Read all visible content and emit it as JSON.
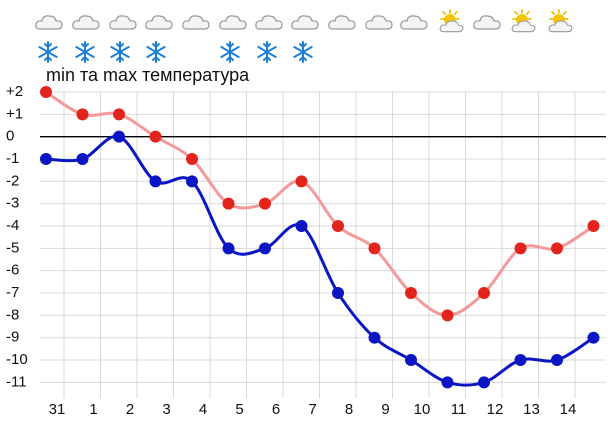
{
  "chart_data": {
    "type": "line",
    "title": "min та max температура",
    "categories": [
      "31",
      "1",
      "2",
      "3",
      "4",
      "5",
      "6",
      "7",
      "8",
      "9",
      "10",
      "11",
      "12",
      "13",
      "14",
      null
    ],
    "series": [
      {
        "color": "#e3241c",
        "line_color": "#f39a9a",
        "values": [
          2,
          1,
          1,
          0,
          -1,
          -3,
          -3,
          -2,
          -4,
          -5,
          -7,
          -8,
          -7,
          -5,
          -5,
          -4
        ]
      },
      {
        "color": "#0a16c4",
        "line_color": "#0a16c4",
        "values": [
          -1,
          -1,
          0,
          -2,
          -2,
          -5,
          -5,
          -4,
          -7,
          -9,
          -10,
          -11,
          -11,
          -10,
          -10,
          -9
        ]
      }
    ],
    "ylim": [
      -11.7,
      2
    ],
    "yticks": [
      {
        "value": 2,
        "label": "+2"
      },
      {
        "value": 1,
        "label": "+1"
      },
      0,
      -1,
      -2,
      -3,
      -4,
      -5,
      -6,
      -7,
      -8,
      -9,
      -10,
      -11
    ],
    "grid": true,
    "zero_line": true
  }
}
